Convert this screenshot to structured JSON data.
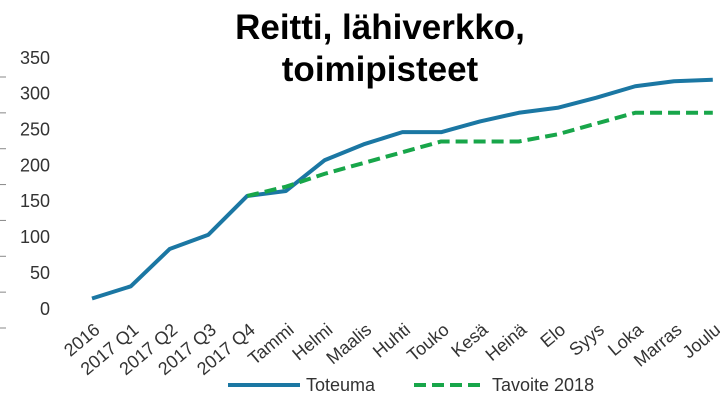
{
  "chart_data": {
    "type": "line",
    "title": "Reitti, lähiverkko, toimipisteet",
    "categories": [
      "2016",
      "2017 Q1",
      "2017 Q2",
      "2017 Q3",
      "2017 Q4",
      "Tammi",
      "Helmi",
      "Maalis",
      "Huhti",
      "Touko",
      "Kesä",
      "Heinä",
      "Elo",
      "Syys",
      "Loka",
      "Marras",
      "Joulu"
    ],
    "series": [
      {
        "name": "Toteuma",
        "color": "#1b77a3",
        "dash": false,
        "values": [
          16,
          33,
          85,
          105,
          159,
          166,
          209,
          231,
          248,
          248,
          263,
          275,
          282,
          296,
          312,
          319,
          321
        ]
      },
      {
        "name": "Tavoite 2018",
        "color": "#18a64a",
        "dash": true,
        "values": [
          null,
          null,
          null,
          null,
          159,
          172,
          190,
          205,
          220,
          235,
          235,
          235,
          245,
          260,
          275,
          275,
          275
        ]
      }
    ],
    "ylim": [
      0,
      350
    ],
    "yticks": [
      0,
      50,
      100,
      150,
      200,
      250,
      300,
      350
    ],
    "grid": false,
    "legend": "bottom"
  }
}
